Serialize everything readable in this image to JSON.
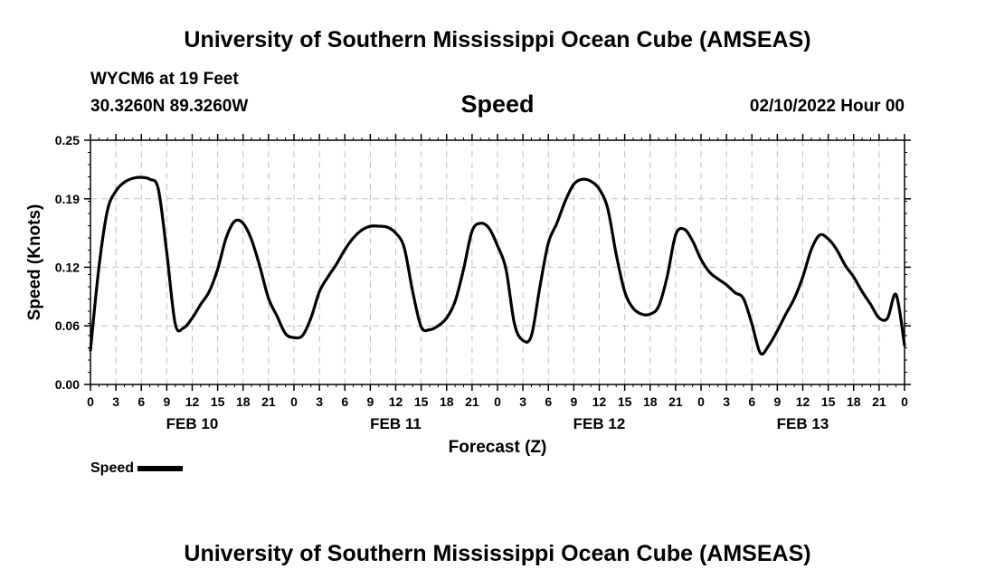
{
  "header": {
    "title": "University of Southern Mississippi Ocean Cube (AMSEAS)",
    "station": "WYCM6 at 19 Feet",
    "coords": "30.3260N  89.3260W",
    "chart_name": "Speed",
    "datetime": "02/10/2022 Hour 00"
  },
  "footer": {
    "title": "University of Southern Mississippi Ocean Cube (AMSEAS)"
  },
  "legend": {
    "label": "Speed",
    "color": "#000000"
  },
  "chart_data": {
    "type": "line",
    "title": "Speed",
    "xlabel": "Forecast (Z)",
    "ylabel": "Speed (Knots)",
    "xlim": [
      0,
      96
    ],
    "ylim": [
      0,
      0.25
    ],
    "grid": true,
    "y_ticks": [
      0.0,
      0.06,
      0.12,
      0.19,
      0.25
    ],
    "y_tick_labels": [
      "0.00",
      "0.06",
      "0.12",
      "0.19",
      "0.25"
    ],
    "x_ticks": [
      0,
      3,
      6,
      9,
      12,
      15,
      18,
      21,
      24,
      27,
      30,
      33,
      36,
      39,
      42,
      45,
      48,
      51,
      54,
      57,
      60,
      63,
      66,
      69,
      72,
      75,
      78,
      81,
      84,
      87,
      90,
      93,
      96
    ],
    "x_tick_labels": [
      "0",
      "3",
      "6",
      "9",
      "12",
      "15",
      "18",
      "21",
      "0",
      "3",
      "6",
      "9",
      "12",
      "15",
      "18",
      "21",
      "0",
      "3",
      "6",
      "9",
      "12",
      "15",
      "18",
      "21",
      "0",
      "3",
      "6",
      "9",
      "12",
      "15",
      "18",
      "21",
      "0"
    ],
    "day_labels": [
      {
        "label": "FEB 10",
        "hour": 12
      },
      {
        "label": "FEB 11",
        "hour": 36
      },
      {
        "label": "FEB 12",
        "hour": 60
      },
      {
        "label": "FEB 13",
        "hour": 84
      }
    ],
    "series": [
      {
        "name": "Speed",
        "x": [
          0,
          1,
          2,
          3,
          4,
          5,
          6,
          7,
          8,
          9,
          10,
          11,
          12,
          13,
          14,
          15,
          16,
          17,
          18,
          19,
          20,
          21,
          22,
          23,
          24,
          25,
          26,
          27,
          28,
          29,
          30,
          31,
          32,
          33,
          34,
          35,
          36,
          37,
          38,
          39,
          40,
          41,
          42,
          43,
          44,
          45,
          46,
          47,
          48,
          49,
          50,
          51,
          52,
          53,
          54,
          55,
          56,
          57,
          58,
          59,
          60,
          61,
          62,
          63,
          64,
          65,
          66,
          67,
          68,
          69,
          70,
          71,
          72,
          73,
          74,
          75,
          76,
          77,
          78,
          79,
          80,
          81,
          82,
          83,
          84,
          85,
          86,
          87,
          88,
          89,
          90,
          91,
          92,
          93,
          94,
          95,
          96
        ],
        "y": [
          0.035,
          0.12,
          0.178,
          0.198,
          0.207,
          0.211,
          0.212,
          0.21,
          0.2,
          0.135,
          0.062,
          0.058,
          0.068,
          0.082,
          0.095,
          0.118,
          0.15,
          0.167,
          0.165,
          0.148,
          0.12,
          0.088,
          0.07,
          0.052,
          0.048,
          0.05,
          0.068,
          0.095,
          0.11,
          0.123,
          0.138,
          0.15,
          0.158,
          0.162,
          0.162,
          0.161,
          0.155,
          0.14,
          0.095,
          0.059,
          0.056,
          0.06,
          0.068,
          0.085,
          0.118,
          0.157,
          0.165,
          0.16,
          0.142,
          0.118,
          0.062,
          0.045,
          0.05,
          0.1,
          0.145,
          0.165,
          0.188,
          0.205,
          0.21,
          0.208,
          0.2,
          0.18,
          0.133,
          0.095,
          0.078,
          0.072,
          0.072,
          0.08,
          0.11,
          0.153,
          0.159,
          0.147,
          0.128,
          0.115,
          0.108,
          0.102,
          0.094,
          0.088,
          0.062,
          0.032,
          0.04,
          0.055,
          0.072,
          0.088,
          0.11,
          0.138,
          0.153,
          0.149,
          0.138,
          0.122,
          0.11,
          0.095,
          0.082,
          0.068,
          0.068,
          0.092,
          0.04
        ]
      }
    ]
  }
}
